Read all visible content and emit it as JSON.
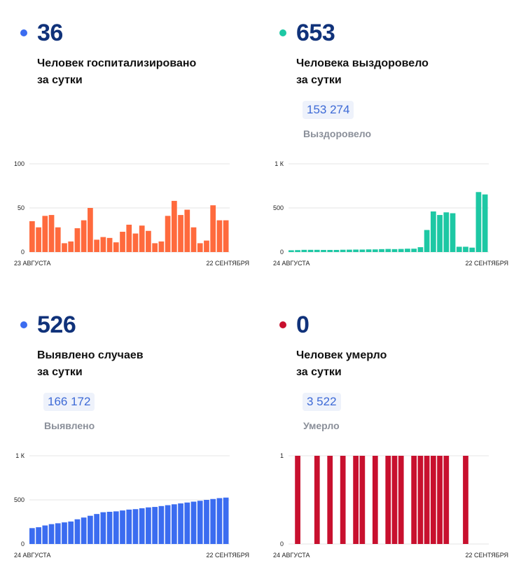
{
  "panels": [
    {
      "value": "36",
      "desc_line1": "Человек госпитализировано",
      "desc_line2": "за сутки",
      "total": "",
      "total_label": "",
      "dot_color": "#3b6cf0",
      "bar_color": "#ff6a3d"
    },
    {
      "value": "653",
      "desc_line1": "Человека выздоровело",
      "desc_line2": "за сутки",
      "total": "153 274",
      "total_label": "Выздоровело",
      "dot_color": "#1dc8a4",
      "bar_color": "#1dc8a4"
    },
    {
      "value": "526",
      "desc_line1": "Выявлено случаев",
      "desc_line2": "за сутки",
      "total": "166 172",
      "total_label": "Выявлено",
      "dot_color": "#3b6cf0",
      "bar_color": "#3b6cf0"
    },
    {
      "value": "0",
      "desc_line1": "Человек умерло",
      "desc_line2": "за сутки",
      "total": "3 522",
      "total_label": "Умерло",
      "dot_color": "#c8102e",
      "bar_color": "#c8102e"
    }
  ],
  "chart_data": [
    {
      "type": "bar",
      "x_start_label": "23 АВГУСТА",
      "x_end_label": "22 СЕНТЯБРЯ",
      "yticks": [
        "0",
        "50",
        "100"
      ],
      "ylim": [
        0,
        100
      ],
      "grid": true,
      "values": [
        35,
        28,
        41,
        42,
        28,
        10,
        12,
        27,
        36,
        50,
        14,
        17,
        16,
        11,
        23,
        31,
        21,
        30,
        24,
        10,
        12,
        41,
        58,
        42,
        48,
        28,
        10,
        13,
        53,
        36,
        36
      ]
    },
    {
      "type": "bar",
      "x_start_label": "24 АВГУСТА",
      "x_end_label": "22 СЕНТЯБРЯ",
      "yticks": [
        "0",
        "500",
        "1 К"
      ],
      "ylim": [
        0,
        1000
      ],
      "grid": true,
      "values": [
        20,
        22,
        25,
        25,
        25,
        24,
        24,
        24,
        26,
        27,
        28,
        28,
        30,
        30,
        33,
        35,
        33,
        35,
        38,
        38,
        55,
        250,
        460,
        420,
        450,
        440,
        60,
        60,
        50,
        680,
        653
      ]
    },
    {
      "type": "bar",
      "x_start_label": "24 АВГУСТА",
      "x_end_label": "22 СЕНТЯБРЯ",
      "yticks": [
        "0",
        "500",
        "1 К"
      ],
      "ylim": [
        0,
        1000
      ],
      "grid": true,
      "values": [
        180,
        190,
        210,
        225,
        235,
        245,
        255,
        280,
        300,
        320,
        340,
        360,
        365,
        370,
        380,
        390,
        395,
        405,
        415,
        420,
        430,
        440,
        450,
        460,
        470,
        480,
        490,
        500,
        510,
        520,
        526
      ]
    },
    {
      "type": "bar",
      "x_start_label": "24 АВГУСТА",
      "x_end_label": "22 СЕНТЯБРЯ",
      "yticks": [
        "0",
        "1"
      ],
      "ylim": [
        0,
        1
      ],
      "grid": true,
      "values": [
        0,
        1,
        0,
        0,
        1,
        0,
        1,
        0,
        1,
        0,
        1,
        1,
        0,
        1,
        0,
        1,
        1,
        1,
        0,
        1,
        1,
        1,
        1,
        1,
        1,
        0,
        0,
        1,
        0,
        0,
        0
      ]
    }
  ]
}
